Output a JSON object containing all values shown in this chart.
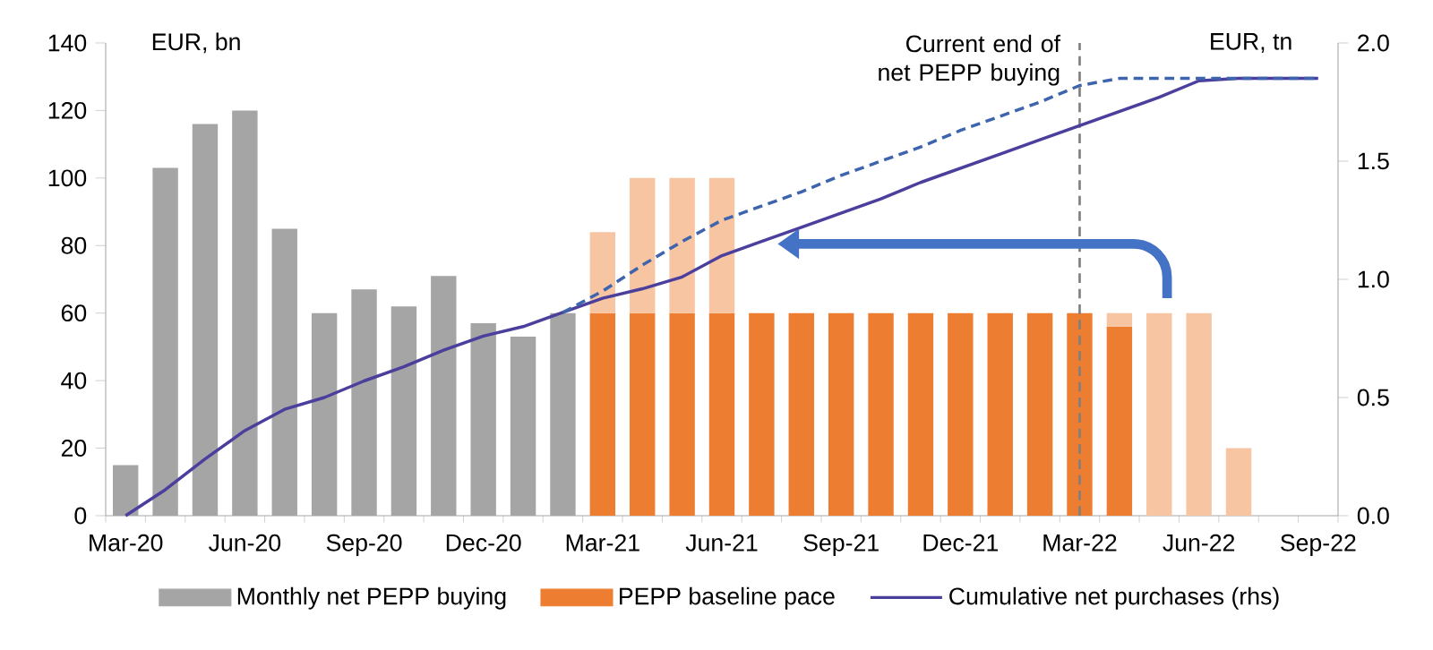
{
  "chart_data": {
    "type": "bar",
    "stacked": true,
    "ylabel": "EUR, bn",
    "y2label": "EUR, tn",
    "categories": [
      "Mar-20",
      null,
      null,
      "Jun-20",
      null,
      null,
      "Sep-20",
      null,
      null,
      "Dec-20",
      null,
      null,
      "Mar-21",
      null,
      null,
      "Jun-21",
      null,
      null,
      "Sep-21",
      null,
      null,
      "Dec-21",
      null,
      null,
      "Mar-22",
      null,
      null,
      "Jun-22",
      null,
      null,
      "Sep-22"
    ],
    "series": [
      {
        "name": "Monthly net PEPP buying",
        "color": "#a5a5a5",
        "values": [
          15,
          103,
          116,
          120,
          85,
          60,
          67,
          62,
          71,
          57,
          53,
          60,
          null,
          null,
          null,
          null,
          null,
          null,
          null,
          null,
          null,
          null,
          null,
          null,
          null,
          null,
          null,
          null,
          null,
          null,
          null
        ]
      },
      {
        "name": "PEPP baseline pace",
        "color": "#ed7d31",
        "values": [
          null,
          null,
          null,
          null,
          null,
          null,
          null,
          null,
          null,
          null,
          null,
          null,
          60,
          60,
          60,
          60,
          60,
          60,
          60,
          60,
          60,
          60,
          60,
          60,
          60,
          56,
          null,
          null,
          null,
          null,
          null
        ]
      },
      {
        "color": "#f7c5a2",
        "values": [
          null,
          null,
          null,
          null,
          null,
          null,
          null,
          null,
          null,
          null,
          null,
          null,
          24,
          40,
          40,
          40,
          null,
          null,
          null,
          null,
          null,
          null,
          null,
          null,
          null,
          4,
          60,
          60,
          20,
          null,
          null
        ]
      },
      {
        "name": "Cumulative net purchases (rhs)",
        "type": "line",
        "axis": "y2",
        "color": "#4b3f9e",
        "values": [
          0.0,
          0.11,
          0.24,
          0.36,
          0.45,
          0.5,
          0.57,
          0.63,
          0.7,
          0.76,
          0.8,
          0.86,
          0.92,
          0.96,
          1.01,
          1.1,
          1.16,
          1.22,
          1.28,
          1.34,
          1.41,
          1.47,
          1.53,
          1.59,
          1.65,
          1.71,
          1.77,
          1.84,
          1.85,
          1.85,
          1.85
        ]
      },
      {
        "type": "line",
        "axis": "y2",
        "line_style": "dashed",
        "color": "#3d64ad",
        "values": [
          null,
          null,
          null,
          null,
          null,
          null,
          null,
          null,
          null,
          null,
          null,
          0.86,
          0.95,
          1.06,
          1.16,
          1.25,
          1.31,
          1.37,
          1.44,
          1.5,
          1.56,
          1.63,
          1.69,
          1.75,
          1.82,
          1.85,
          1.85,
          1.85,
          1.85,
          1.85,
          1.85
        ]
      }
    ],
    "ylim": [
      0,
      140
    ],
    "yticks": [
      0,
      20,
      40,
      60,
      80,
      100,
      120,
      140
    ],
    "y2lim": [
      0,
      2
    ],
    "y2ticks": [
      {
        "value": 0,
        "label": "0.0"
      },
      {
        "value": 0.5,
        "label": "0.5"
      },
      {
        "value": 1,
        "label": "1.0"
      },
      {
        "value": 1.5,
        "label": "1.5"
      },
      {
        "value": 2,
        "label": "2.0"
      }
    ],
    "ref_lines": [
      {
        "axis": "x",
        "value": "Mar-22",
        "label": "Current end of net PEPP buying",
        "color": "#7f7f7f",
        "line_style": "dashed"
      }
    ],
    "legend": "bottom"
  }
}
